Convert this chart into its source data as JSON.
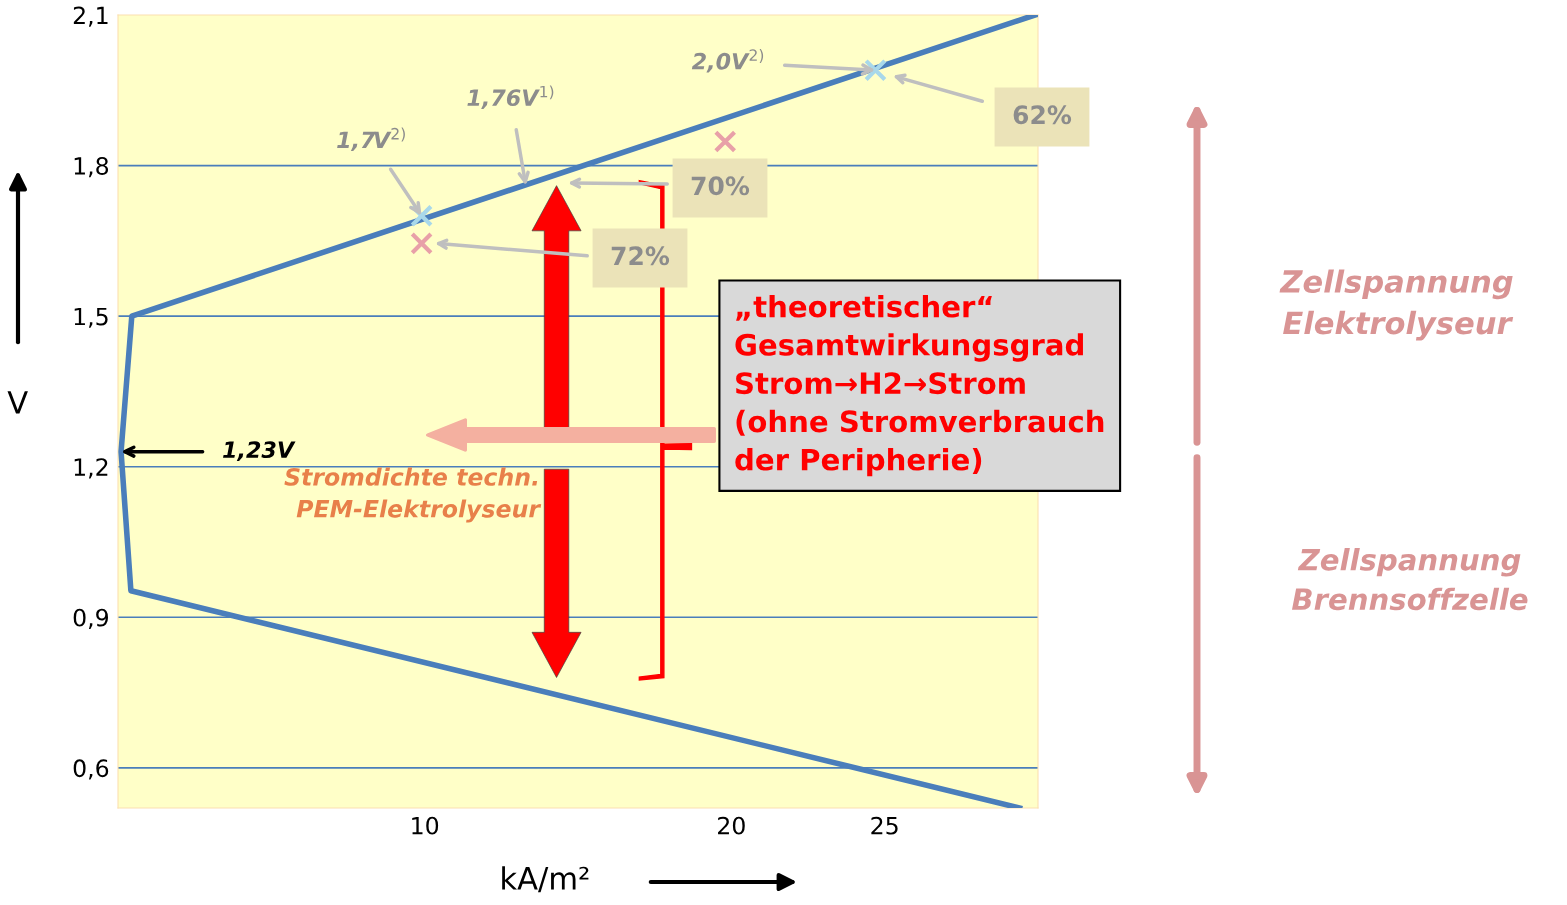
{
  "chart_data": {
    "type": "line",
    "xlabel": "kA/m²",
    "ylabel": "V",
    "xlim": [
      0,
      30
    ],
    "ylim": [
      0.52,
      2.1
    ],
    "xticks": [
      10,
      20,
      25
    ],
    "yticks": [
      {
        "value": 0.6,
        "label": "0,6"
      },
      {
        "value": 0.9,
        "label": "0,9"
      },
      {
        "value": 1.2,
        "label": "1,2"
      },
      {
        "value": 1.5,
        "label": "1,5"
      },
      {
        "value": 1.8,
        "label": "1,8"
      },
      {
        "value": 2.1,
        "label": "2,1"
      }
    ],
    "grid": "y",
    "series": [
      {
        "color": "#4a7ebb",
        "x": [
          29.4,
          0.42,
          0.1,
          0.45,
          29.9
        ],
        "values": [
          0.52,
          0.953,
          1.23,
          1.5,
          2.1
        ]
      },
      {
        "type": "scatter",
        "marker": "cross",
        "color": "#a8d8ea",
        "x": [
          9.9,
          24.7
        ],
        "values": [
          1.7,
          1.99
        ]
      },
      {
        "type": "scatter",
        "marker": "cross",
        "color": "#e8a0a8",
        "x": [
          9.9,
          19.8
        ],
        "values": [
          1.645,
          1.848
        ]
      }
    ],
    "annotations": [
      "„theoretischer“\nGesamtwirkungsgrad\nStrom→H2→Strom\n(ohne Stromverbrauch\nder Peripherie)",
      "Stromdichte techn.\nPEM-Elektrolyseur",
      "Zellspannung\nElektrolyseur",
      "Zellspannung\nBrennsoffzelle",
      "62%",
      "70%",
      "72%",
      {
        "text": "1,7V$^{2)}$",
        "x": 9.9,
        "y": 1.7
      },
      {
        "text": "1,76V$^{1)}$",
        "x": 13.3,
        "y": 1.76
      },
      {
        "text": "2,0V$^{2)}$",
        "x": 24.7,
        "y": 1.99
      },
      {
        "text": "1,23V",
        "x": 0.1,
        "y": 1.23
      }
    ]
  }
}
